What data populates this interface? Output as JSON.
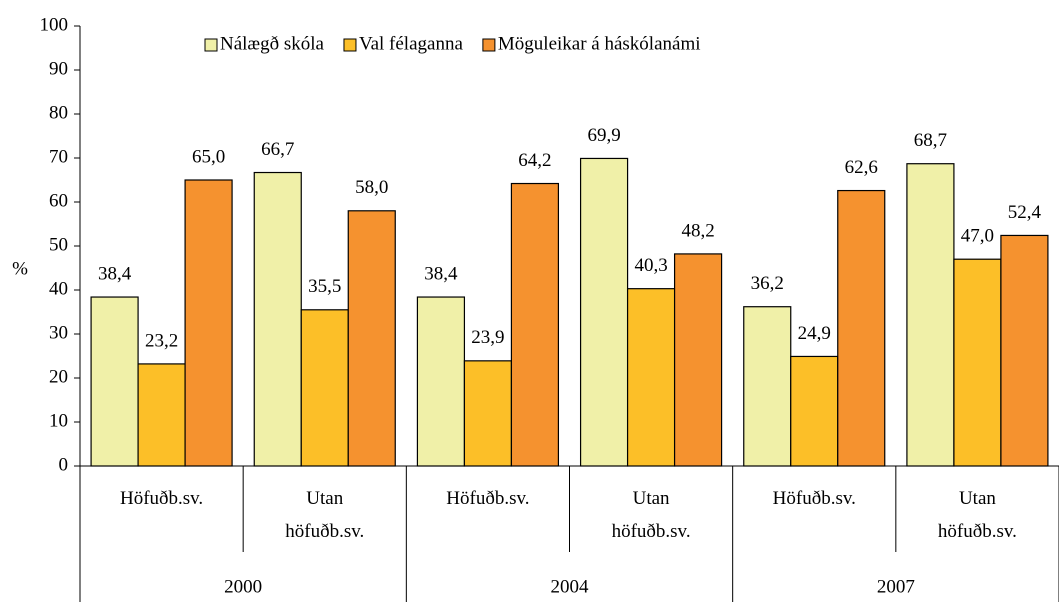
{
  "chart_data": {
    "type": "bar",
    "y_label": "%",
    "categories": [
      "Höfuðb.sv.",
      "Utan höfuðb.sv.",
      "Höfuðb.sv.",
      "Utan höfuðb.sv.",
      "Höfuðb.sv.",
      "Utan höfuðb.sv."
    ],
    "group_labels": [
      "2000",
      "2004",
      "2007"
    ],
    "series": [
      {
        "name": "Nálægð skóla",
        "color": "#f0f0a8",
        "values": [
          38.4,
          66.7,
          38.4,
          69.9,
          36.2,
          68.7
        ],
        "value_labels": [
          "38,4",
          "66,7",
          "38,4",
          "69,9",
          "36,2",
          "68,7"
        ]
      },
      {
        "name": "Val félaganna",
        "color": "#fcbf28",
        "values": [
          23.2,
          35.5,
          23.9,
          40.3,
          24.9,
          47.0
        ],
        "value_labels": [
          "23,2",
          "35,5",
          "23,9",
          "40,3",
          "24,9",
          "47,0"
        ]
      },
      {
        "name": "Möguleikar á háskólanámi",
        "color": "#f5922f",
        "values": [
          65.0,
          58.0,
          64.2,
          48.2,
          62.6,
          52.4
        ],
        "value_labels": [
          "65,0",
          "58,0",
          "64,2",
          "48,2",
          "62,6",
          "52,4"
        ]
      }
    ],
    "ylim": [
      0,
      100
    ],
    "yticks": [
      0,
      10,
      20,
      30,
      40,
      50,
      60,
      70,
      80,
      90,
      100
    ],
    "legend": "top"
  }
}
